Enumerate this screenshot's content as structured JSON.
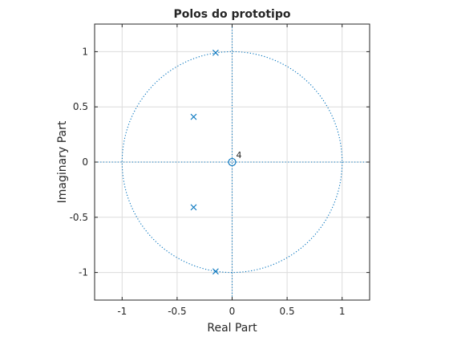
{
  "chart_data": {
    "type": "scatter",
    "title": "Polos do prototipo",
    "xlabel": "Real Part",
    "ylabel": "Imaginary Part",
    "xlim": [
      -1.25,
      1.25
    ],
    "ylim": [
      -1.25,
      1.25
    ],
    "xticks": [
      -1,
      -0.5,
      0,
      0.5,
      1
    ],
    "yticks": [
      -1,
      -0.5,
      0,
      0.5,
      1
    ],
    "xtick_labels": [
      "-1",
      "-0.5",
      "0",
      "0.5",
      "1"
    ],
    "ytick_labels": [
      "-1",
      "-0.5",
      "0",
      "0.5",
      "1"
    ],
    "grid": true,
    "unit_circle": true,
    "series": [
      {
        "marker": "x",
        "points": [
          {
            "x": -0.15,
            "y": 0.99
          },
          {
            "x": -0.35,
            "y": 0.41
          },
          {
            "x": -0.35,
            "y": -0.41
          },
          {
            "x": -0.15,
            "y": -0.99
          }
        ]
      },
      {
        "marker": "o",
        "points": [
          {
            "x": 0,
            "y": 0
          }
        ]
      }
    ],
    "annotations": [
      {
        "text": "4",
        "x": 0,
        "y": 0
      }
    ],
    "colors": {
      "marker": "#0072BD",
      "grid": "#dcdcdc",
      "axes": "#262626"
    }
  }
}
